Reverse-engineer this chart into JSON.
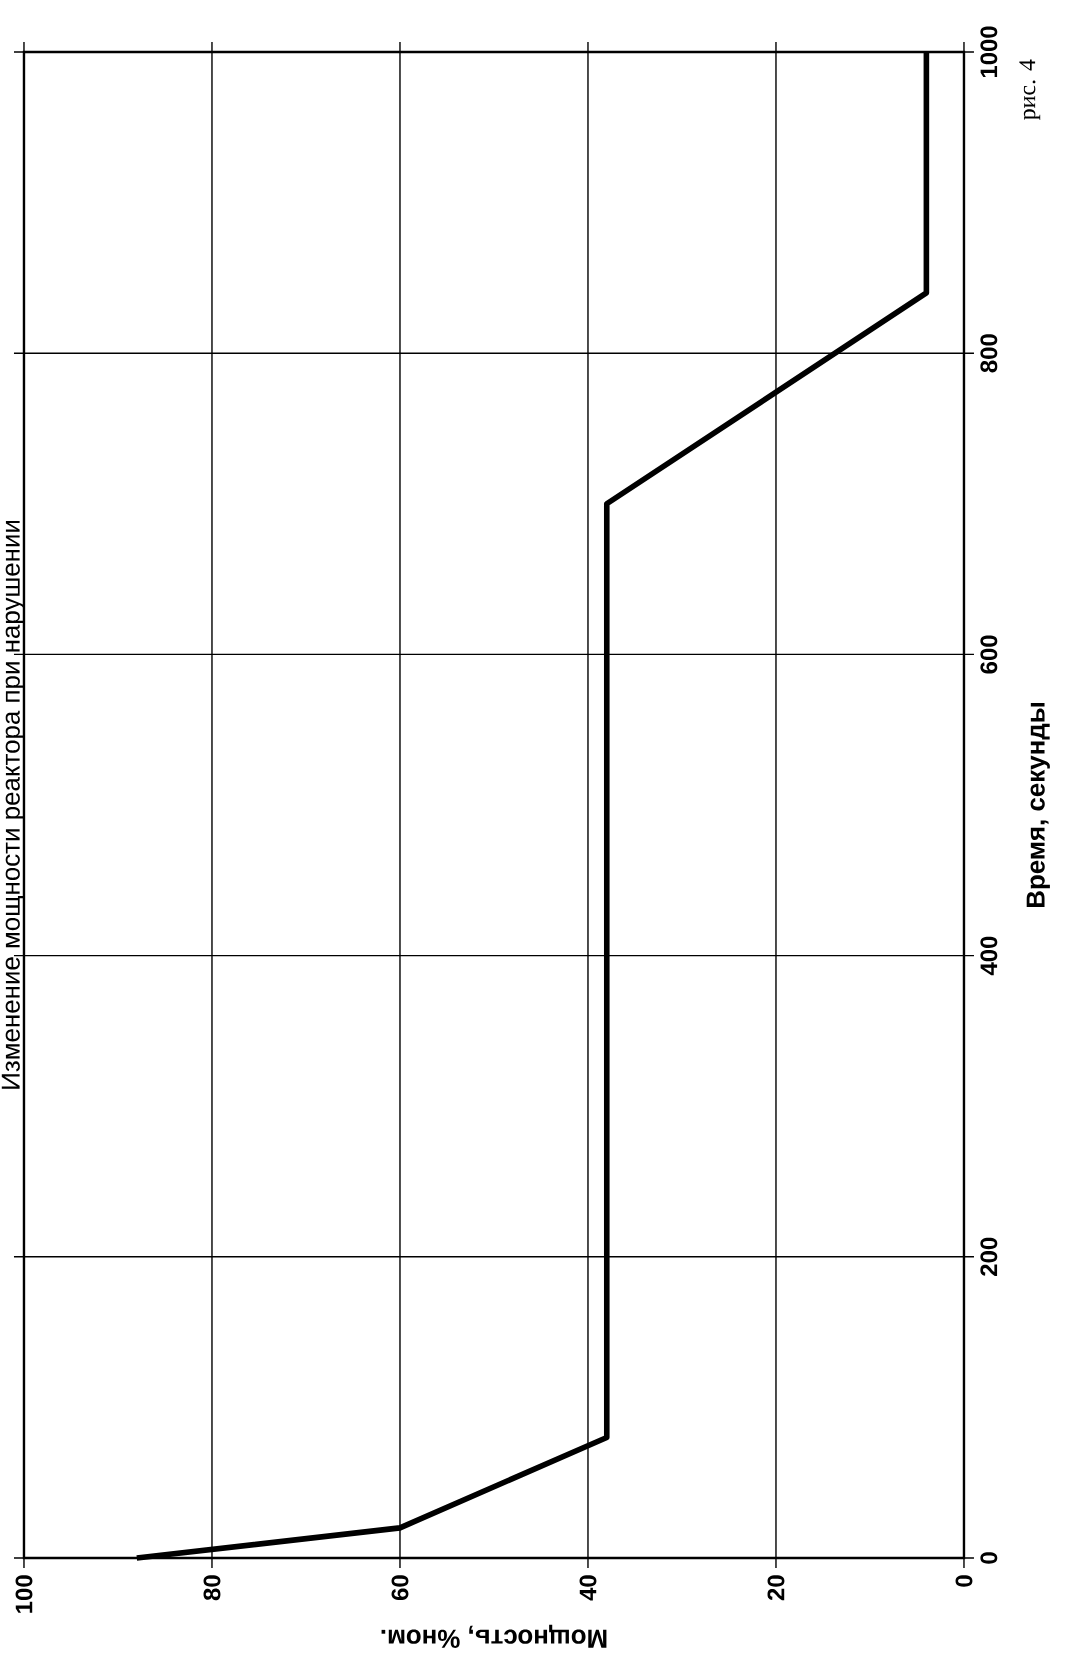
{
  "chart_data": {
    "type": "line",
    "title": "Изменение мощности реактора при нарушении",
    "xlabel": "Мощность, %ном.",
    "ylabel": "Время, секунды",
    "annotations": [
      "рис. 4"
    ],
    "x": [
      88,
      60,
      38,
      38,
      4,
      4
    ],
    "values": [
      0,
      20,
      80,
      700,
      840,
      1000
    ],
    "color": "#000000",
    "line_style": "solid",
    "marker": "none",
    "xlim": [
      100,
      0
    ],
    "ylim": [
      0,
      1000
    ],
    "xticks": [
      {
        "value": 0,
        "label": "0"
      },
      {
        "value": 20,
        "label": "20"
      },
      {
        "value": 40,
        "label": "40"
      },
      {
        "value": 60,
        "label": "60"
      },
      {
        "value": 80,
        "label": "80"
      },
      {
        "value": 100,
        "label": "100"
      }
    ],
    "yticks": [
      {
        "value": 0,
        "label": "0"
      },
      {
        "value": 200,
        "label": "200"
      },
      {
        "value": 400,
        "label": "400"
      },
      {
        "value": 600,
        "label": "600"
      },
      {
        "value": 800,
        "label": "800"
      },
      {
        "value": 1000,
        "label": "1000"
      }
    ],
    "grid": true
  }
}
